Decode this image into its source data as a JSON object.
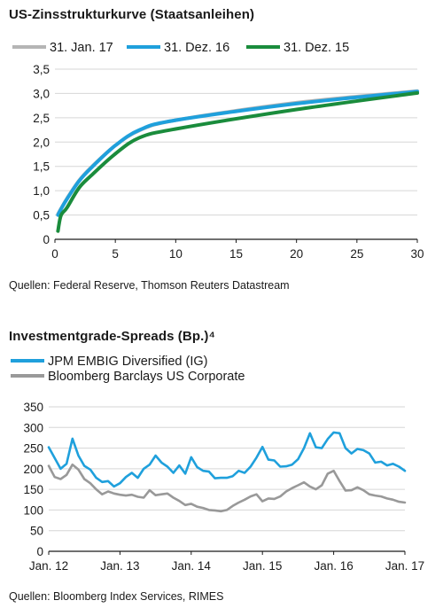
{
  "chart_data": [
    {
      "type": "line",
      "title": "US-Zinsstrukturkurve (Staatsanleihen)",
      "source": "Quellen:  Federal Reserve, Thomson Reuters Datastream",
      "xlim": [
        0,
        30
      ],
      "ylim": [
        0,
        3.5
      ],
      "x_ticks": [
        0,
        5,
        10,
        15,
        20,
        25,
        30
      ],
      "x_tick_labels": [
        "0",
        "5",
        "10",
        "15",
        "20",
        "25",
        "30"
      ],
      "y_ticks": [
        0,
        0.5,
        1.0,
        1.5,
        2.0,
        2.5,
        3.0,
        3.5
      ],
      "y_tick_labels": [
        "0",
        "0,5",
        "1,0",
        "1,5",
        "2,0",
        "2,5",
        "3,0",
        "3,5"
      ],
      "grid": "horizontal",
      "legend_position": "top",
      "series": [
        {
          "name": "31. Jan. 17",
          "color": "#b5b5b5",
          "x": [
            0.25,
            0.5,
            1,
            2,
            3,
            5,
            7,
            10,
            20,
            30
          ],
          "y": [
            0.52,
            0.63,
            0.84,
            1.21,
            1.48,
            1.93,
            2.24,
            2.45,
            2.81,
            3.05
          ]
        },
        {
          "name": "31. Dez. 16",
          "color": "#1fa0dc",
          "x": [
            0.25,
            0.5,
            1,
            2,
            3,
            5,
            7,
            10,
            20,
            30
          ],
          "y": [
            0.5,
            0.62,
            0.83,
            1.2,
            1.47,
            1.93,
            2.25,
            2.45,
            2.79,
            3.04
          ]
        },
        {
          "name": "31. Dez. 15",
          "color": "#1a8c3c",
          "x": [
            0.25,
            0.5,
            1,
            2,
            3,
            5,
            7,
            10,
            20,
            30
          ],
          "y": [
            0.17,
            0.49,
            0.65,
            1.06,
            1.31,
            1.76,
            2.09,
            2.27,
            2.67,
            3.01
          ]
        }
      ]
    },
    {
      "type": "line",
      "title": "Investmentgrade-Spreads (Bp.)⁴",
      "source": "Quellen: Bloomberg Index Services, RIMES",
      "xlim": [
        0,
        60
      ],
      "ylim": [
        0,
        350
      ],
      "x_ticks": [
        0,
        12,
        24,
        36,
        48,
        60
      ],
      "x_tick_labels": [
        "Jan. 12",
        "Jan. 13",
        "Jan. 14",
        "Jan. 15",
        "Jan. 16",
        "Jan. 17"
      ],
      "y_ticks": [
        0,
        50,
        100,
        150,
        200,
        250,
        300,
        350
      ],
      "y_tick_labels": [
        "0",
        "50",
        "100",
        "150",
        "200",
        "250",
        "300",
        "350"
      ],
      "grid": "horizontal",
      "legend_position": "top-left",
      "series": [
        {
          "name": "JPM EMBIG Diversified (IG)",
          "color": "#1fa0dc",
          "x": [
            0,
            2,
            3,
            4,
            5,
            6,
            7,
            8,
            9,
            10,
            11,
            12,
            13,
            14,
            15,
            16,
            17,
            18,
            19,
            20,
            21,
            22,
            23,
            24,
            25,
            26,
            27,
            28,
            29,
            30,
            31,
            32,
            33,
            34,
            35,
            36,
            37,
            38,
            39,
            40,
            41,
            42,
            43,
            44,
            45,
            46,
            47,
            48,
            49,
            50,
            51,
            52,
            53,
            54,
            55,
            56,
            57,
            58,
            59,
            60
          ],
          "y": [
            252,
            200,
            212,
            273,
            232,
            207,
            198,
            178,
            168,
            170,
            157,
            165,
            180,
            190,
            178,
            200,
            210,
            232,
            215,
            205,
            190,
            208,
            188,
            228,
            204,
            195,
            193,
            177,
            178,
            178,
            182,
            195,
            190,
            205,
            227,
            253,
            222,
            220,
            205,
            206,
            210,
            223,
            250,
            286,
            252,
            250,
            272,
            288,
            286,
            250,
            237,
            248,
            245,
            237,
            215,
            217,
            208,
            212,
            205,
            195
          ]
        },
        {
          "name": "Bloomberg Barclays US Corporate",
          "color": "#999999",
          "x": [
            0,
            1,
            2,
            3,
            4,
            5,
            6,
            7,
            8,
            9,
            10,
            11,
            12,
            13,
            14,
            15,
            16,
            17,
            18,
            19,
            20,
            21,
            22,
            23,
            24,
            25,
            26,
            27,
            28,
            29,
            30,
            31,
            32,
            33,
            34,
            35,
            36,
            37,
            38,
            39,
            40,
            41,
            42,
            43,
            44,
            45,
            46,
            47,
            48,
            49,
            50,
            51,
            52,
            53,
            54,
            55,
            56,
            57,
            58,
            59,
            60
          ],
          "y": [
            207,
            180,
            175,
            185,
            210,
            198,
            175,
            165,
            150,
            138,
            145,
            140,
            137,
            135,
            137,
            132,
            130,
            148,
            136,
            138,
            140,
            130,
            122,
            112,
            115,
            108,
            105,
            100,
            99,
            97,
            100,
            110,
            118,
            125,
            133,
            138,
            121,
            128,
            127,
            133,
            145,
            153,
            160,
            167,
            157,
            150,
            160,
            188,
            195,
            170,
            147,
            148,
            155,
            148,
            138,
            135,
            133,
            128,
            125,
            120,
            118
          ]
        }
      ]
    }
  ]
}
